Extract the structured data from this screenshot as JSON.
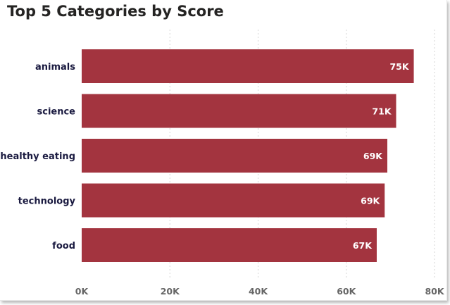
{
  "chart_data": {
    "type": "bar",
    "orientation": "horizontal",
    "title": "Top 5 Categories by Score",
    "categories": [
      "animals",
      "science",
      "healthy eating",
      "technology",
      "food"
    ],
    "values": [
      75300,
      71300,
      69300,
      68700,
      66900
    ],
    "value_labels": [
      "75K",
      "71K",
      "69K",
      "69K",
      "67K"
    ],
    "xlim": [
      0,
      80000
    ],
    "x_ticks": [
      0,
      20000,
      40000,
      60000,
      80000
    ],
    "x_tick_labels": [
      "0K",
      "20K",
      "40K",
      "60K",
      "80K"
    ],
    "grid": true,
    "bar_color": "#a3343f",
    "legend": "none"
  }
}
